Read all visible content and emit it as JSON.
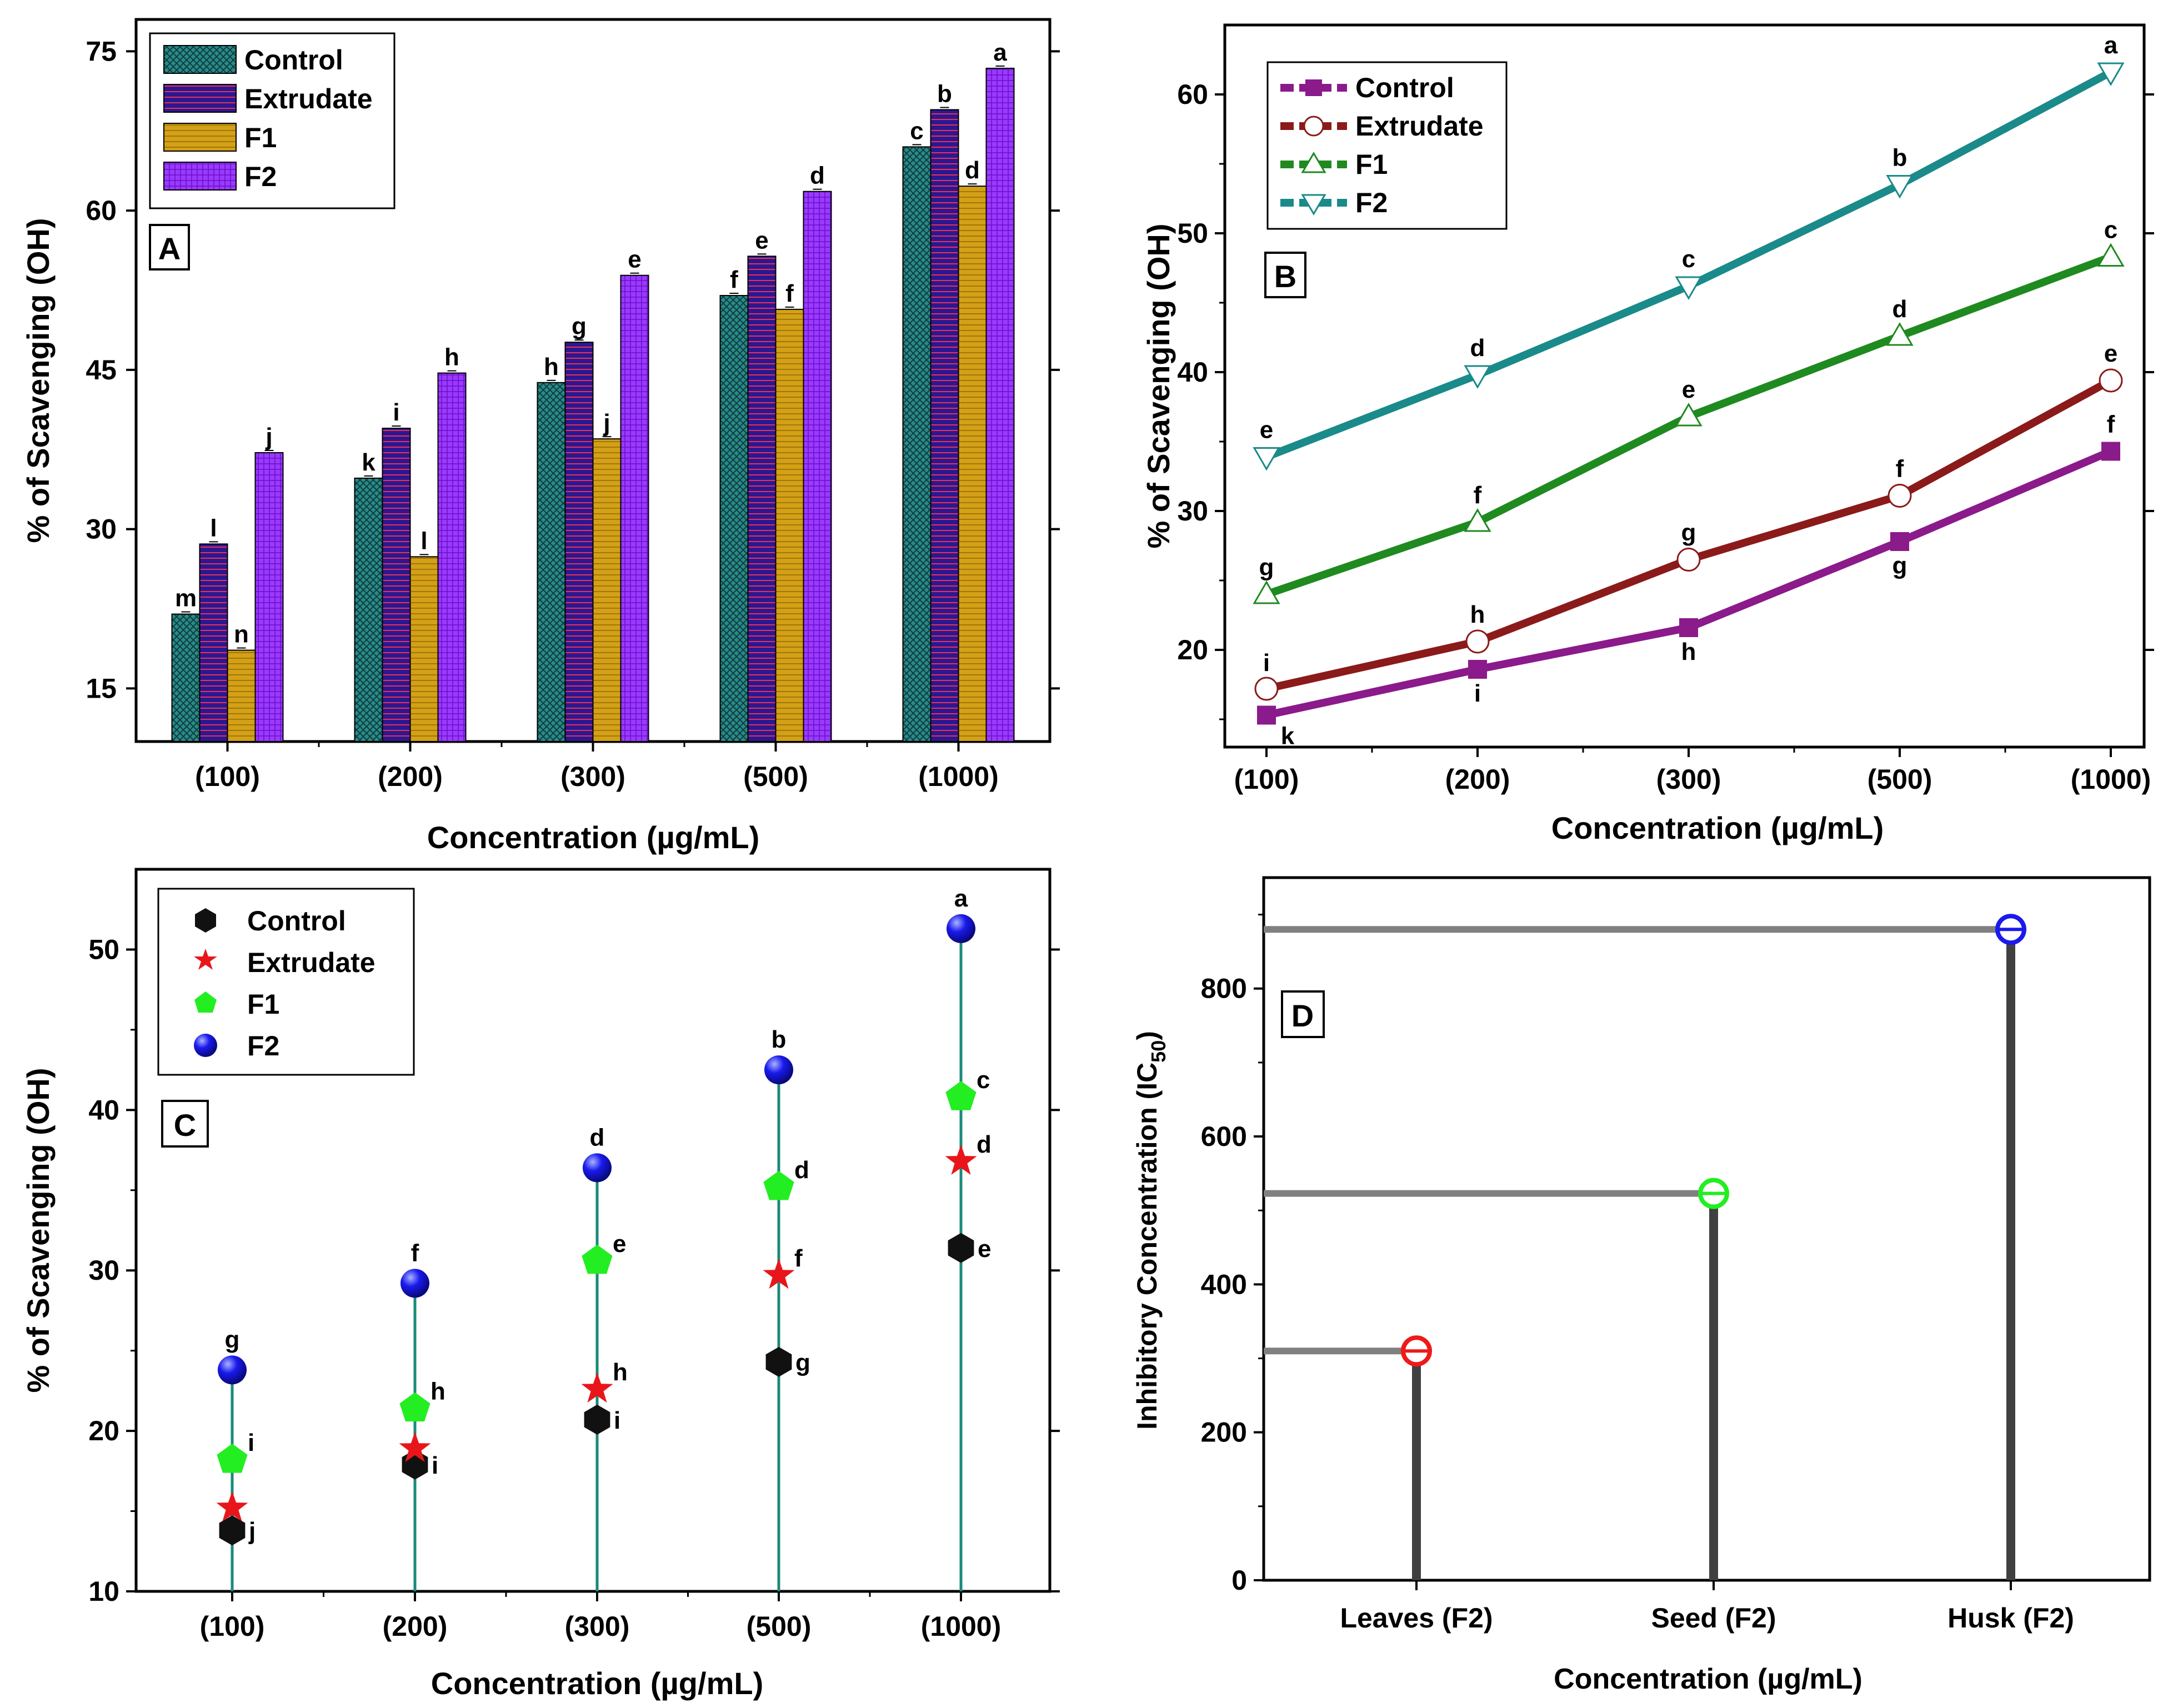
{
  "chart_data": [
    {
      "panel": "A",
      "type": "bar",
      "ylabel": "% of Scavenging (OH)",
      "xlabel": "Concentration (µg/mL)",
      "categories": [
        "(100)",
        "(200)",
        "(300)",
        "(500)",
        "(1000)"
      ],
      "ylim": [
        10,
        78
      ],
      "yticks": [
        "15",
        "30",
        "45",
        "60",
        "75"
      ],
      "legend_position": "top-left",
      "series": [
        {
          "name": "Control",
          "color": "#2a8a8a",
          "pattern": "crosshatch",
          "values": [
            22.0,
            34.8,
            43.8,
            52.0,
            66.0
          ],
          "letters": [
            "m",
            "k",
            "h",
            "f",
            "c"
          ]
        },
        {
          "name": "Extrudate",
          "color": "#3a1fa8",
          "pattern": "hlines-red",
          "values": [
            28.6,
            39.5,
            47.6,
            55.7,
            69.5
          ],
          "letters": [
            "l",
            "i",
            "g",
            "e",
            "b"
          ]
        },
        {
          "name": "F1",
          "color": "#d4a017",
          "pattern": "hlines",
          "values": [
            18.6,
            27.4,
            38.5,
            50.7,
            62.3
          ],
          "letters": [
            "n",
            "l",
            "j",
            "f",
            "d"
          ]
        },
        {
          "name": "F2",
          "color": "#8a2be2",
          "pattern": "grid",
          "values": [
            37.2,
            44.7,
            53.9,
            61.8,
            73.4
          ],
          "letters": [
            "j",
            "h",
            "e",
            "d",
            "a"
          ]
        }
      ]
    },
    {
      "panel": "B",
      "type": "line",
      "ylabel": "% of Scavenging (OH)",
      "xlabel": "Concentration (µg/mL)",
      "categories": [
        "(100)",
        "(200)",
        "(300)",
        "(500)",
        "(1000)"
      ],
      "ylim": [
        13,
        65
      ],
      "yticks": [
        "20",
        "30",
        "40",
        "50",
        "60"
      ],
      "legend_position": "top-left",
      "series": [
        {
          "name": "Control",
          "color": "#8b1a8b",
          "marker": "square",
          "values": [
            15.3,
            18.6,
            21.6,
            27.8,
            34.3
          ],
          "letters": [
            "k",
            "i",
            "h",
            "g",
            "f"
          ]
        },
        {
          "name": "Extrudate",
          "color": "#8b1a1a",
          "marker": "circle",
          "values": [
            17.2,
            20.6,
            26.5,
            31.1,
            39.4
          ],
          "letters": [
            "i",
            "h",
            "g",
            "f",
            "e"
          ]
        },
        {
          "name": "F1",
          "color": "#1f8a1f",
          "marker": "triangle-up",
          "values": [
            24.0,
            29.2,
            36.8,
            42.6,
            48.3
          ],
          "letters": [
            "g",
            "f",
            "e",
            "d",
            "c"
          ]
        },
        {
          "name": "F2",
          "color": "#1a8a8a",
          "marker": "triangle-down",
          "values": [
            33.9,
            39.8,
            46.2,
            53.5,
            61.6
          ],
          "letters": [
            "e",
            "d",
            "c",
            "b",
            "a"
          ]
        }
      ]
    },
    {
      "panel": "C",
      "type": "scatter",
      "ylabel": "% of Scavenging (OH)",
      "xlabel": "Concentration (µg/mL)",
      "categories": [
        "(100)",
        "(200)",
        "(300)",
        "(500)",
        "(1000)"
      ],
      "ylim": [
        10,
        55
      ],
      "yticks": [
        "10",
        "20",
        "30",
        "40",
        "50"
      ],
      "legend_position": "top-left",
      "drop_line_color": "#1a8a7a",
      "series": [
        {
          "name": "Control",
          "color": "#111111",
          "marker": "hexagon",
          "values": [
            13.8,
            17.9,
            20.7,
            24.3,
            31.4
          ],
          "letters": [
            "j",
            "i",
            "i",
            "g",
            "e"
          ]
        },
        {
          "name": "Extrudate",
          "color": "#e8161a",
          "marker": "star",
          "values": [
            15.2,
            18.9,
            22.6,
            29.7,
            36.8
          ],
          "letters": [
            "",
            "",
            "h",
            "f",
            "d"
          ]
        },
        {
          "name": "F1",
          "color": "#22ee22",
          "marker": "pentagon",
          "values": [
            18.2,
            21.4,
            30.6,
            35.2,
            40.8
          ],
          "letters": [
            "i",
            "h",
            "e",
            "d",
            "c"
          ]
        },
        {
          "name": "F2",
          "color": "#1a1aee",
          "marker": "sphere",
          "values": [
            23.8,
            29.2,
            36.4,
            42.5,
            51.3
          ],
          "letters": [
            "g",
            "f",
            "d",
            "b",
            "a"
          ]
        }
      ]
    },
    {
      "panel": "D",
      "type": "drop-line",
      "ylabel": "Inhibitory Concentration (IC",
      "ylabel_sub": "50",
      "ylabel_close": ")",
      "xlabel": "Concentration (µg/mL)",
      "ylim": [
        0,
        950
      ],
      "yticks": [
        "0",
        "200",
        "400",
        "600",
        "800"
      ],
      "points": [
        {
          "label": "Leaves (F2)",
          "value": 310,
          "color": "#ee1a1a"
        },
        {
          "label": "Seed (F2)",
          "value": 523,
          "color": "#22ee22"
        },
        {
          "label": "Husk (F2)",
          "value": 880,
          "color": "#1a1aee"
        }
      ]
    }
  ]
}
